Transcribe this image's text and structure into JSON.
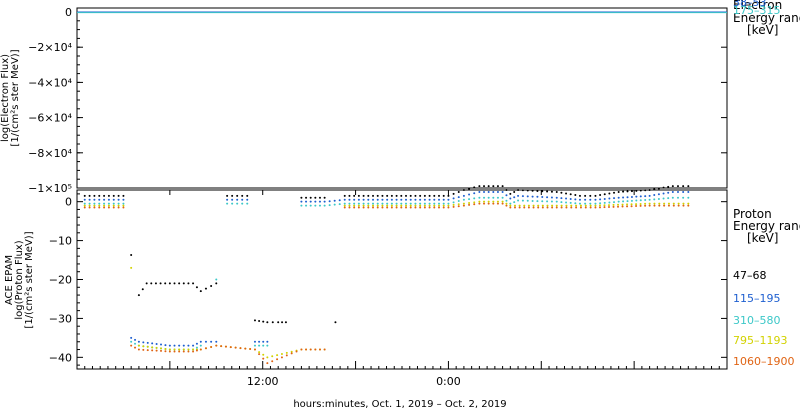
{
  "chart_data": [
    {
      "type": "line",
      "title": "",
      "ylabel_lines": [
        "log(Electron Flux)",
        "[1/(cm²s ster MeV)]"
      ],
      "ylim": [
        -100000,
        0
      ],
      "ytick_labels": [
        "0",
        "−2×10⁴",
        "−4×10⁴",
        "−6×10⁴",
        "−8×10⁴",
        "−1×10⁵"
      ],
      "ytick_values": [
        0,
        -20000,
        -40000,
        -60000,
        -80000,
        -100000
      ],
      "legend": {
        "header_lines": [
          "Electron",
          "Energy range",
          "[keV]"
        ],
        "entries": [
          "38–53",
          "175–315"
        ],
        "colors": [
          "#1e5fd0",
          "#3cc8c8"
        ]
      },
      "series": [
        {
          "name": "38–53",
          "color": "#1e5fd0",
          "values": [
            [
              0,
              0
            ],
            [
              42,
              0
            ]
          ]
        },
        {
          "name": "175–315",
          "color": "#3cc8c8",
          "values": [
            [
              0,
              0
            ],
            [
              42,
              0
            ]
          ]
        }
      ]
    },
    {
      "type": "scatter",
      "title": "",
      "ylabel_lines": [
        "ACE EPAM",
        "log(Proton Flux)",
        "[1/(cm²s ster MeV)]"
      ],
      "xlabel": "hours:minutes, Oct.  1, 2019 – Oct.  2, 2019",
      "xlim": [
        0,
        42
      ],
      "xtick_labels": [
        "12:00",
        "0:00"
      ],
      "xtick_values": [
        12,
        24
      ],
      "ylim": [
        -43,
        3
      ],
      "ytick_labels": [
        "0",
        "−10",
        "−20",
        "−30",
        "−40"
      ],
      "ytick_values": [
        0,
        -10,
        -20,
        -30,
        -40
      ],
      "legend": {
        "header_lines": [
          "Proton",
          "Energy range",
          "[keV]"
        ],
        "entries": [
          "47–68",
          "115–195",
          "310–580",
          "795–1193",
          "1060–1900"
        ],
        "colors": [
          "#000000",
          "#1e5fd0",
          "#3cc8c8",
          "#d2d200",
          "#e06414"
        ]
      },
      "series": [
        {
          "name": "47–68",
          "color": "#000000",
          "values": [
            [
              0.5,
              1.5
            ],
            [
              3,
              1.5
            ],
            [
              3.5,
              -13.7
            ],
            [
              4,
              -24
            ],
            [
              4.5,
              -21
            ],
            [
              6,
              -21
            ],
            [
              7.5,
              -21
            ],
            [
              8,
              -23
            ],
            [
              9,
              -21
            ],
            [
              9.7,
              1.5
            ],
            [
              11,
              1.5
            ],
            [
              11.5,
              -30.5
            ],
            [
              12.3,
              -31
            ],
            [
              13,
              -31
            ],
            [
              13.5,
              -31
            ],
            [
              14.5,
              1
            ],
            [
              16,
              1
            ],
            [
              16.7,
              -31
            ],
            [
              17.3,
              1.5
            ],
            [
              24,
              1.5
            ],
            [
              25,
              3
            ],
            [
              26,
              4
            ],
            [
              27.5,
              4
            ],
            [
              28,
              2
            ],
            [
              28.5,
              3
            ],
            [
              31,
              2.5
            ],
            [
              32.5,
              1.5
            ],
            [
              33.5,
              1.5
            ],
            [
              35,
              2.5
            ],
            [
              37,
              3
            ],
            [
              38.5,
              4
            ],
            [
              39.5,
              4
            ]
          ]
        },
        {
          "name": "115–195",
          "color": "#1e5fd0",
          "values": [
            [
              0.5,
              0.5
            ],
            [
              3,
              0.5
            ],
            [
              3.5,
              -35
            ],
            [
              4,
              -36
            ],
            [
              6,
              -37
            ],
            [
              7.5,
              -37
            ],
            [
              8,
              -36
            ],
            [
              9,
              -36
            ],
            [
              9.7,
              0.5
            ],
            [
              11,
              0.5
            ],
            [
              11.5,
              -36
            ],
            [
              12.3,
              -36
            ],
            [
              14.5,
              0
            ],
            [
              16,
              0
            ],
            [
              17.3,
              0.5
            ],
            [
              24,
              0.5
            ],
            [
              25,
              1.5
            ],
            [
              26,
              2.5
            ],
            [
              27.5,
              2.5
            ],
            [
              28,
              0.8
            ],
            [
              28.5,
              1.5
            ],
            [
              31,
              1
            ],
            [
              32.5,
              0.5
            ],
            [
              33.5,
              0.5
            ],
            [
              35,
              1
            ],
            [
              37,
              1.5
            ],
            [
              38.5,
              2.5
            ],
            [
              39.5,
              2.5
            ]
          ]
        },
        {
          "name": "310–580",
          "color": "#3cc8c8",
          "values": [
            [
              0.5,
              -0.5
            ],
            [
              3,
              -0.5
            ],
            [
              3.5,
              -36
            ],
            [
              4,
              -37
            ],
            [
              6,
              -38
            ],
            [
              7.5,
              -38
            ],
            [
              8,
              -37
            ],
            [
              9,
              -20
            ],
            [
              9.7,
              -0.5
            ],
            [
              11,
              -0.5
            ],
            [
              11.5,
              -37
            ],
            [
              12.3,
              -37
            ],
            [
              14.5,
              -1
            ],
            [
              16,
              -1
            ],
            [
              17.3,
              -0.5
            ],
            [
              24,
              -0.5
            ],
            [
              25,
              0.5
            ],
            [
              26,
              1
            ],
            [
              27.5,
              1
            ],
            [
              28,
              -0.5
            ],
            [
              28.5,
              0.3
            ],
            [
              31,
              0
            ],
            [
              32.5,
              -0.5
            ],
            [
              33.5,
              -0.5
            ],
            [
              35,
              0
            ],
            [
              37,
              0.5
            ],
            [
              38.5,
              1
            ],
            [
              39.5,
              1
            ]
          ]
        },
        {
          "name": "795–1193",
          "color": "#d2d200",
          "values": [
            [
              0.5,
              -1
            ],
            [
              3,
              -1
            ],
            [
              3.5,
              -17
            ],
            [
              4,
              -37
            ],
            [
              6,
              -38
            ],
            [
              7.5,
              -38
            ],
            [
              8,
              -38
            ],
            [
              9,
              -37
            ],
            [
              11.5,
              -38
            ],
            [
              12.3,
              -40
            ],
            [
              14.5,
              -38
            ],
            [
              16,
              -38
            ],
            [
              17.3,
              -1
            ],
            [
              24,
              -1
            ],
            [
              25,
              -0.5
            ],
            [
              26,
              0
            ],
            [
              27.5,
              0
            ],
            [
              28,
              -1
            ],
            [
              31,
              -1
            ],
            [
              33.5,
              -1
            ],
            [
              37,
              -0.5
            ],
            [
              39.5,
              -0.5
            ]
          ]
        },
        {
          "name": "1060–1900",
          "color": "#e06414",
          "values": [
            [
              0.5,
              -1.5
            ],
            [
              3,
              -1.5
            ],
            [
              3.5,
              -37
            ],
            [
              4,
              -38
            ],
            [
              6,
              -38.5
            ],
            [
              7.5,
              -38.5
            ],
            [
              8,
              -38
            ],
            [
              9,
              -37
            ],
            [
              11.5,
              -38
            ],
            [
              12.3,
              -41.5
            ],
            [
              14.5,
              -38
            ],
            [
              16,
              -38
            ],
            [
              17.3,
              -1.5
            ],
            [
              24,
              -1.5
            ],
            [
              25,
              -1
            ],
            [
              26,
              -0.5
            ],
            [
              27.5,
              -0.5
            ],
            [
              28,
              -1.5
            ],
            [
              31,
              -1.5
            ],
            [
              33.5,
              -1.5
            ],
            [
              37,
              -1
            ],
            [
              39.5,
              -1
            ]
          ]
        }
      ]
    }
  ]
}
